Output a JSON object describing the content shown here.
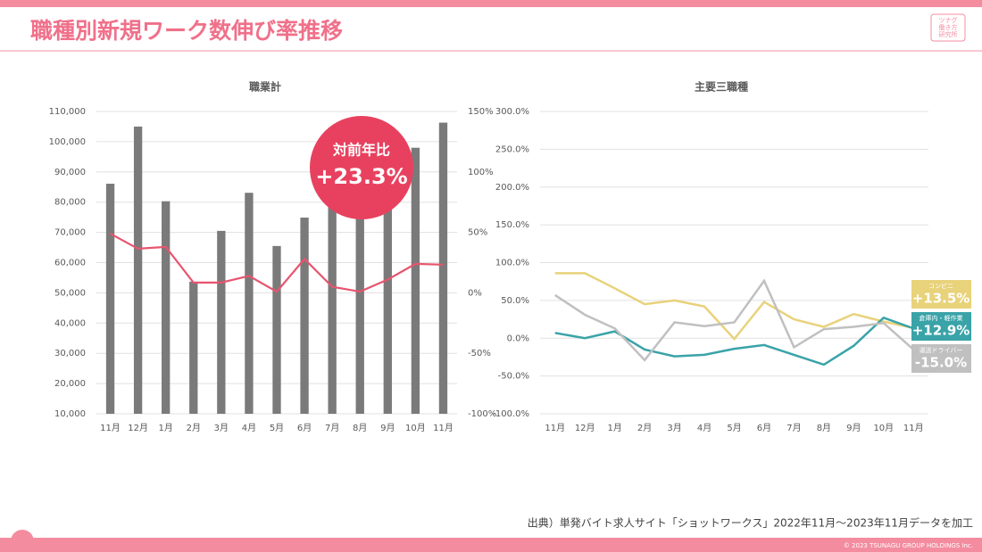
{
  "title": "職種別新規ワーク数伸び率推移",
  "logo": [
    "ツナグ",
    "働き方",
    "研究所"
  ],
  "source": "出典）単発バイト求人サイト「ショットワークス」2022年11月～2023年11月データを加工",
  "copyright": "© 2023 TSUNAGU GROUP HOLDINGS Inc.",
  "chart_data": [
    {
      "type": "bar",
      "title": "職業計",
      "annotation": "対前年比",
      "categories": [
        "11月",
        "12月",
        "1月",
        "2月",
        "3月",
        "4月",
        "5月",
        "6月",
        "7月",
        "8月",
        "9月",
        "10月",
        "11月"
      ],
      "series": [
        {
          "color": "#7a7a7a",
          "values": [
            86100,
            105000,
            80300,
            53700,
            70500,
            83100,
            65500,
            74900,
            80000,
            76000,
            80500,
            98000,
            106300
          ]
        },
        {
          "type": "line",
          "axis": "y2",
          "color": "#e8546e",
          "values": [
            49,
            36.5,
            38,
            8.5,
            8.5,
            14,
            1,
            28,
            5,
            1,
            11,
            24,
            23.3
          ],
          "value_labels": [
            null,
            null,
            null,
            null,
            null,
            null,
            null,
            null,
            null,
            null,
            null,
            null,
            "+23.3%"
          ]
        }
      ],
      "ylim": [
        10000,
        110000
      ],
      "yticks": [
        {
          "value": 10000,
          "label": "10,000"
        },
        {
          "value": 20000,
          "label": "20,000"
        },
        {
          "value": 30000,
          "label": "30,000"
        },
        {
          "value": 40000,
          "label": "40,000"
        },
        {
          "value": 50000,
          "label": "50,000"
        },
        {
          "value": 60000,
          "label": "60,000"
        },
        {
          "value": 70000,
          "label": "70,000"
        },
        {
          "value": 80000,
          "label": "80,000"
        },
        {
          "value": 90000,
          "label": "90,000"
        },
        {
          "value": 100000,
          "label": "100,000"
        },
        {
          "value": 110000,
          "label": "110,000"
        }
      ],
      "y2lim": [
        -100,
        150
      ],
      "y2ticks": [
        {
          "value": -100,
          "label": "-100%"
        },
        {
          "value": -50,
          "label": "-50%"
        },
        {
          "value": 0,
          "label": "0%"
        },
        {
          "value": 50,
          "label": "50%"
        },
        {
          "value": 100,
          "label": "100%"
        },
        {
          "value": 150,
          "label": "150%"
        }
      ],
      "grid": true
    },
    {
      "type": "line",
      "title": "主要三職種",
      "categories": [
        "11月",
        "12月",
        "1月",
        "2月",
        "3月",
        "4月",
        "5月",
        "6月",
        "7月",
        "8月",
        "9月",
        "10月",
        "11月"
      ],
      "series": [
        {
          "name": "コンビニ",
          "color": "#e8d27a",
          "values": [
            86,
            86,
            66,
            45,
            50,
            42,
            -1,
            48,
            25,
            15,
            32,
            22,
            13.5
          ],
          "value_labels": [
            null,
            null,
            null,
            null,
            null,
            null,
            null,
            null,
            null,
            null,
            null,
            null,
            "+13.5%"
          ]
        },
        {
          "name": "倉庫内・軽作業",
          "color": "#3aa3a8",
          "values": [
            7,
            0,
            9,
            -15,
            -24,
            -22,
            -14,
            -9,
            -22,
            -35,
            -10,
            27,
            12.9
          ],
          "value_labels": [
            null,
            null,
            null,
            null,
            null,
            null,
            null,
            null,
            null,
            null,
            null,
            null,
            "+12.9%"
          ]
        },
        {
          "name": "運送ドライバー",
          "color": "#c0c0c0",
          "values": [
            57,
            31,
            13,
            -29,
            21,
            16,
            21,
            76,
            -12,
            12,
            15,
            20,
            -15
          ],
          "value_labels": [
            null,
            null,
            null,
            null,
            null,
            null,
            null,
            null,
            null,
            null,
            null,
            null,
            "-15.0%"
          ]
        }
      ],
      "ylim": [
        -100,
        300
      ],
      "yticks": [
        {
          "value": -100,
          "label": "-100.0%"
        },
        {
          "value": -50,
          "label": "-50.0%"
        },
        {
          "value": 0,
          "label": "0.0%"
        },
        {
          "value": 50,
          "label": "50.0%"
        },
        {
          "value": 100,
          "label": "100.0%"
        },
        {
          "value": 150,
          "label": "150.0%"
        },
        {
          "value": 200,
          "label": "200.0%"
        },
        {
          "value": 250,
          "label": "250.0%"
        },
        {
          "value": 300,
          "label": "300.0%"
        }
      ],
      "grid": true
    }
  ]
}
